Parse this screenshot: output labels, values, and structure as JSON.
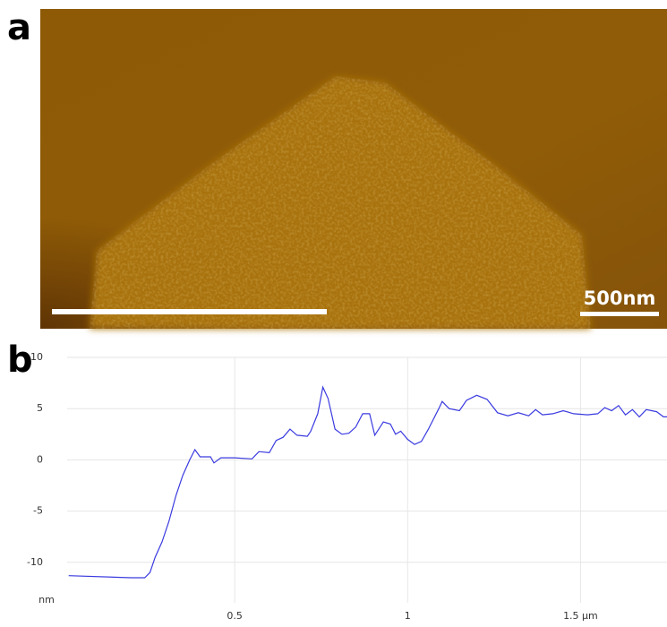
{
  "panel_labels": [
    "a",
    "b"
  ],
  "image": {
    "scale_label": "500nm"
  },
  "chart_data": {
    "type": "line",
    "ylabel": "nm",
    "xlim": [
      0,
      1.75
    ],
    "ylim": [
      -15,
      10
    ],
    "xticks": [
      0.5,
      1,
      {
        "value": 1.5,
        "label": "1.5 μm"
      }
    ],
    "yticks": [
      10,
      5,
      0,
      -5,
      -10
    ],
    "grid": true,
    "series": [
      {
        "color": "#3a3ae0",
        "x": [
          0.02,
          0.2,
          0.24,
          0.255,
          0.27,
          0.29,
          0.31,
          0.33,
          0.35,
          0.37,
          0.385,
          0.4,
          0.43,
          0.44,
          0.46,
          0.5,
          0.55,
          0.57,
          0.6,
          0.62,
          0.64,
          0.66,
          0.68,
          0.71,
          0.72,
          0.74,
          0.755,
          0.77,
          0.79,
          0.81,
          0.83,
          0.85,
          0.87,
          0.89,
          0.905,
          0.93,
          0.95,
          0.965,
          0.98,
          1.0,
          1.02,
          1.04,
          1.06,
          1.09,
          1.1,
          1.12,
          1.15,
          1.17,
          1.2,
          1.23,
          1.26,
          1.29,
          1.32,
          1.35,
          1.37,
          1.39,
          1.42,
          1.45,
          1.48,
          1.52,
          1.55,
          1.57,
          1.59,
          1.61,
          1.63,
          1.65,
          1.67,
          1.69,
          1.72,
          1.74,
          1.75
        ],
        "values": [
          -11.3,
          -11.5,
          -11.5,
          -11.0,
          -9.5,
          -8,
          -6,
          -3.5,
          -1.5,
          0,
          1.0,
          0.3,
          0.3,
          -0.3,
          0.2,
          0.2,
          0.1,
          0.8,
          0.7,
          1.9,
          2.2,
          3.0,
          2.4,
          2.3,
          2.8,
          4.5,
          7.1,
          6.0,
          3.0,
          2.5,
          2.6,
          3.2,
          4.5,
          4.5,
          2.4,
          3.7,
          3.5,
          2.5,
          2.8,
          2.0,
          1.5,
          1.8,
          3.0,
          5.0,
          5.7,
          5.0,
          4.8,
          5.8,
          6.3,
          5.9,
          4.6,
          4.3,
          4.6,
          4.3,
          4.9,
          4.4,
          4.5,
          4.8,
          4.5,
          4.4,
          4.5,
          5.1,
          4.8,
          5.3,
          4.4,
          4.9,
          4.2,
          4.9,
          4.7,
          4.2,
          4.2
        ]
      }
    ]
  }
}
